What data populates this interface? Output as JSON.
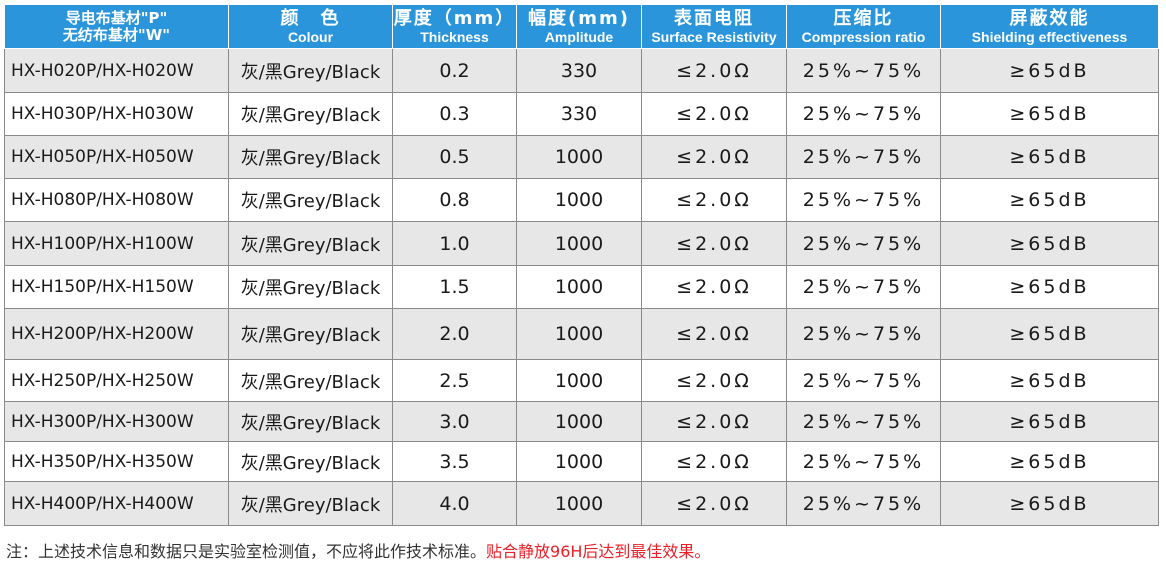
{
  "headers": [
    {
      "zh": "导电布基材\"P\"",
      "zh2": "无纺布基材\"W\"",
      "en": ""
    },
    {
      "zh": "颜　色",
      "en": "Colour"
    },
    {
      "zh": "厚度（mm）",
      "en": "Thickness"
    },
    {
      "zh": "幅度(mm)",
      "en": "Amplitude"
    },
    {
      "zh": "表面电阻",
      "en": "Surface Resistivity"
    },
    {
      "zh": "压缩比",
      "en": "Compression ratio"
    },
    {
      "zh": "屏蔽效能",
      "en": "Shielding effectiveness"
    }
  ],
  "rows": [
    {
      "model": "HX-H020P/HX-H020W",
      "colour": "灰/黑Grey/Black",
      "thickness": "0.2",
      "amplitude": "330",
      "resistivity": "≤2.0Ω",
      "compression": "25%~75%",
      "shielding": "≥65dB"
    },
    {
      "model": "HX-H030P/HX-H030W",
      "colour": "灰/黑Grey/Black",
      "thickness": "0.3",
      "amplitude": "330",
      "resistivity": "≤2.0Ω",
      "compression": "25%~75%",
      "shielding": "≥65dB"
    },
    {
      "model": "HX-H050P/HX-H050W",
      "colour": "灰/黑Grey/Black",
      "thickness": "0.5",
      "amplitude": "1000",
      "resistivity": "≤2.0Ω",
      "compression": "25%~75%",
      "shielding": "≥65dB"
    },
    {
      "model": "HX-H080P/HX-H080W",
      "colour": "灰/黑Grey/Black",
      "thickness": "0.8",
      "amplitude": "1000",
      "resistivity": "≤2.0Ω",
      "compression": "25%~75%",
      "shielding": "≥65dB"
    },
    {
      "model": "HX-H100P/HX-H100W",
      "colour": "灰/黑Grey/Black",
      "thickness": "1.0",
      "amplitude": "1000",
      "resistivity": "≤2.0Ω",
      "compression": "25%~75%",
      "shielding": "≥65dB"
    },
    {
      "model": "HX-H150P/HX-H150W",
      "colour": "灰/黑Grey/Black",
      "thickness": "1.5",
      "amplitude": "1000",
      "resistivity": "≤2.0Ω",
      "compression": "25%~75%",
      "shielding": "≥65dB"
    },
    {
      "model": "HX-H200P/HX-H200W",
      "colour": "灰/黑Grey/Black",
      "thickness": "2.0",
      "amplitude": "1000",
      "resistivity": "≤2.0Ω",
      "compression": "25%~75%",
      "shielding": "≥65dB"
    },
    {
      "model": "HX-H250P/HX-H250W",
      "colour": "灰/黑Grey/Black",
      "thickness": "2.5",
      "amplitude": "1000",
      "resistivity": "≤2.0Ω",
      "compression": "25%~75%",
      "shielding": "≥65dB"
    },
    {
      "model": "HX-H300P/HX-H300W",
      "colour": "灰/黑Grey/Black",
      "thickness": "3.0",
      "amplitude": "1000",
      "resistivity": "≤2.0Ω",
      "compression": "25%~75%",
      "shielding": "≥65dB"
    },
    {
      "model": "HX-H350P/HX-H350W",
      "colour": "灰/黑Grey/Black",
      "thickness": "3.5",
      "amplitude": "1000",
      "resistivity": "≤2.0Ω",
      "compression": "25%~75%",
      "shielding": "≥65dB"
    },
    {
      "model": "HX-H400P/HX-H400W",
      "colour": "灰/黑Grey/Black",
      "thickness": "4.0",
      "amplitude": "1000",
      "resistivity": "≤2.0Ω",
      "compression": "25%~75%",
      "shielding": "≥65dB"
    }
  ],
  "note": {
    "text": "注：上述技术信息和数据只是实验室检测值，不应将此作技术标准。",
    "highlight": "贴合静放96H后达到最佳效果。"
  },
  "colors": {
    "header_bg": "#2a95db",
    "row_shade": "#e7e7e7",
    "note_highlight": "#e8202a"
  }
}
